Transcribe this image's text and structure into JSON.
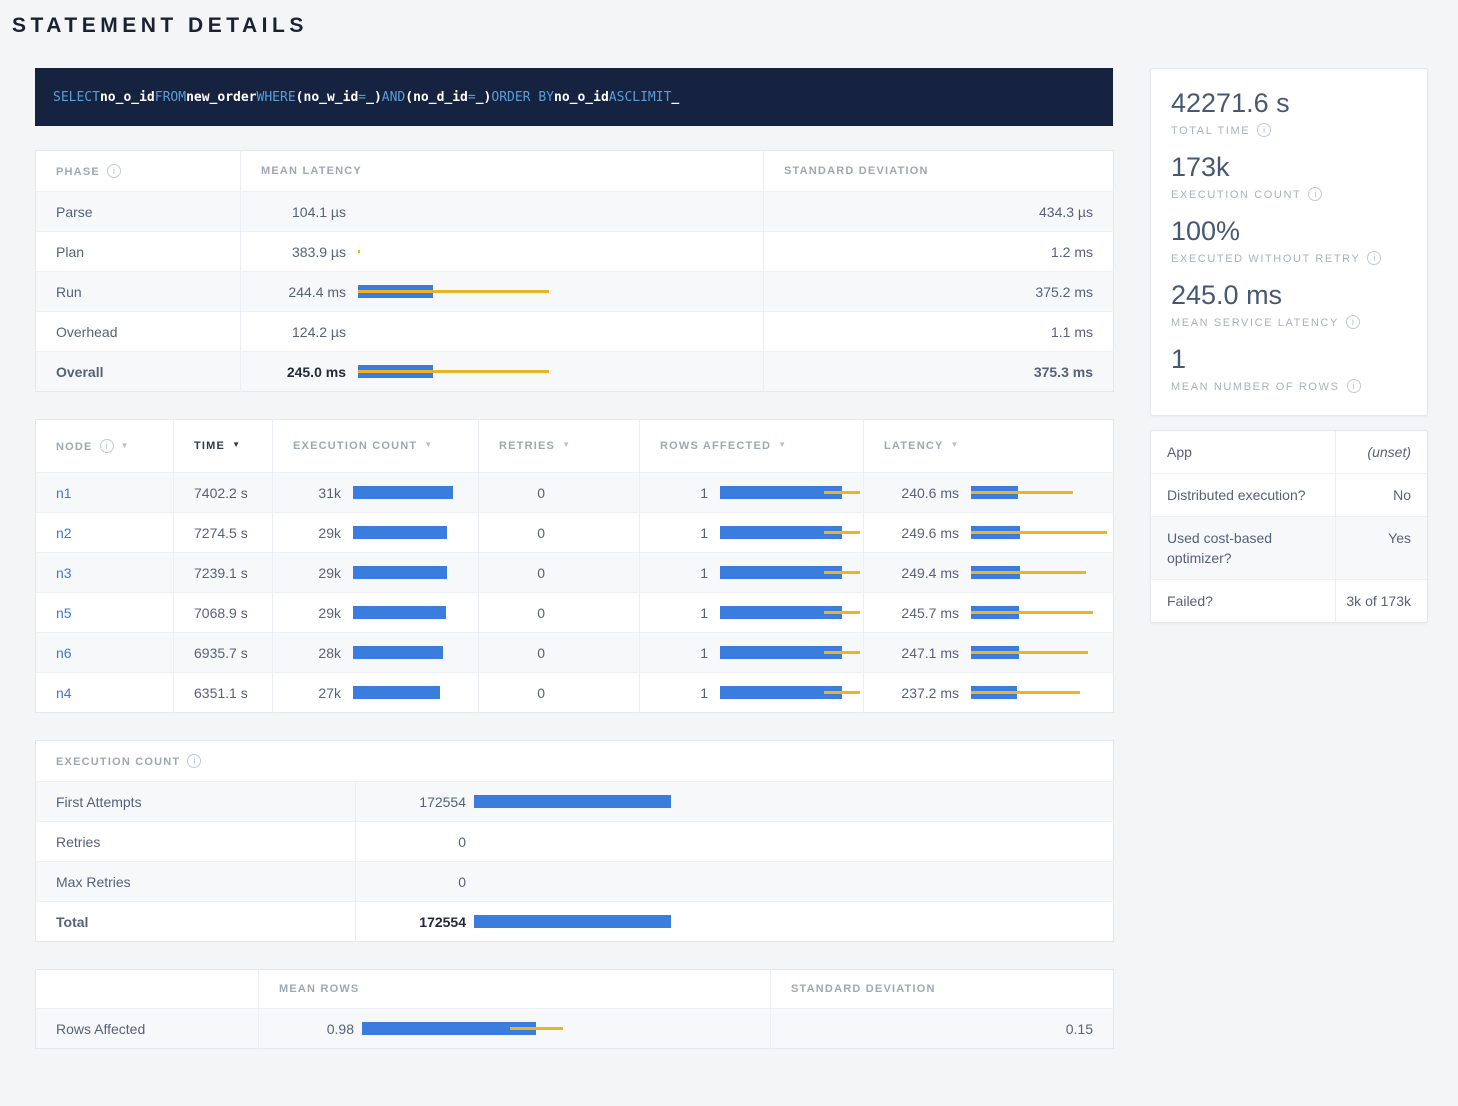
{
  "page": {
    "title": "STATEMENT DETAILS"
  },
  "colors": {
    "bar_blue": "#3B7DDD",
    "bar_yellow": "#ECB326",
    "link_blue": "#3B78DC",
    "sql_keyword_blue": "#5C9DD6",
    "sql_background": "#152341"
  },
  "sql": {
    "tokens": [
      {
        "t": "SELECT",
        "k": true
      },
      {
        "t": "no_o_id",
        "k": false
      },
      {
        "t": "FROM",
        "k": true
      },
      {
        "t": "new_order",
        "k": false
      },
      {
        "t": "WHERE",
        "k": true
      },
      {
        "t": "(no_w_id",
        "k": false
      },
      {
        "t": "=",
        "k": true
      },
      {
        "t": "_)",
        "k": false
      },
      {
        "t": "AND",
        "k": true
      },
      {
        "t": "(no_d_id",
        "k": false
      },
      {
        "t": "=",
        "k": true
      },
      {
        "t": "_)",
        "k": false
      },
      {
        "t": "ORDER BY",
        "k": true
      },
      {
        "t": "no_o_id",
        "k": false
      },
      {
        "t": "ASC",
        "k": true
      },
      {
        "t": "LIMIT",
        "k": true
      },
      {
        "t": "_",
        "k": false
      }
    ]
  },
  "phase_table": {
    "col_phase": "PHASE",
    "col_mean": "MEAN LATENCY",
    "col_std": "STANDARD DEVIATION",
    "rows": [
      {
        "phase": "Parse",
        "mean": "104.1 µs",
        "mean_ms": 0.1041,
        "std": "434.3 µs",
        "std_ms": 0.4343,
        "bold": false
      },
      {
        "phase": "Plan",
        "mean": "383.9 µs",
        "mean_ms": 0.3839,
        "std": "1.2 ms",
        "std_ms": 1.2,
        "bold": false
      },
      {
        "phase": "Run",
        "mean": "244.4 ms",
        "mean_ms": 244.4,
        "std": "375.2 ms",
        "std_ms": 375.2,
        "bold": false
      },
      {
        "phase": "Overhead",
        "mean": "124.2 µs",
        "mean_ms": 0.1242,
        "std": "1.1 ms",
        "std_ms": 1.1,
        "bold": false
      },
      {
        "phase": "Overall",
        "mean": "245.0 ms",
        "mean_ms": 245.0,
        "std": "375.3 ms",
        "std_ms": 375.3,
        "bold": true
      }
    ]
  },
  "node_table": {
    "columns": {
      "node": "NODE",
      "time": "TIME",
      "exec": "EXECUTION COUNT",
      "retries": "RETRIES",
      "rows": "ROWS AFFECTED",
      "latency": "LATENCY"
    },
    "sorted_column": "TIME",
    "rows": [
      {
        "node": "n1",
        "time": "7402.2 s",
        "exec_label": "31k",
        "exec": 31000,
        "retries": "0",
        "rows_label": "1",
        "rows_mean": 1,
        "rows_std": 0.15,
        "lat_label": "240.6 ms",
        "lat_ms": 240.6,
        "lat_std_ms": 280
      },
      {
        "node": "n2",
        "time": "7274.5 s",
        "exec_label": "29k",
        "exec": 29200,
        "retries": "0",
        "rows_label": "1",
        "rows_mean": 1,
        "rows_std": 0.15,
        "lat_label": "249.6 ms",
        "lat_ms": 249.6,
        "lat_std_ms": 450
      },
      {
        "node": "n3",
        "time": "7239.1 s",
        "exec_label": "29k",
        "exec": 29000,
        "retries": "0",
        "rows_label": "1",
        "rows_mean": 1,
        "rows_std": 0.15,
        "lat_label": "249.4 ms",
        "lat_ms": 249.4,
        "lat_std_ms": 340
      },
      {
        "node": "n5",
        "time": "7068.9 s",
        "exec_label": "29k",
        "exec": 28900,
        "retries": "0",
        "rows_label": "1",
        "rows_mean": 1,
        "rows_std": 0.15,
        "lat_label": "245.7 ms",
        "lat_ms": 245.7,
        "lat_std_ms": 380
      },
      {
        "node": "n6",
        "time": "6935.7 s",
        "exec_label": "28k",
        "exec": 28000,
        "retries": "0",
        "rows_label": "1",
        "rows_mean": 1,
        "rows_std": 0.15,
        "lat_label": "247.1 ms",
        "lat_ms": 247.1,
        "lat_std_ms": 355
      },
      {
        "node": "n4",
        "time": "6351.1 s",
        "exec_label": "27k",
        "exec": 27000,
        "retries": "0",
        "rows_label": "1",
        "rows_mean": 1,
        "rows_std": 0.15,
        "lat_label": "237.2 ms",
        "lat_ms": 237.2,
        "lat_std_ms": 320
      }
    ]
  },
  "exec_table": {
    "title": "EXECUTION COUNT",
    "rows": [
      {
        "label": "First Attempts",
        "value": "172554",
        "num": 172554,
        "bold": false
      },
      {
        "label": "Retries",
        "value": "0",
        "num": 0,
        "bold": false
      },
      {
        "label": "Max Retries",
        "value": "0",
        "num": 0,
        "bold": false
      },
      {
        "label": "Total",
        "value": "172554",
        "num": 172554,
        "bold": true
      }
    ]
  },
  "rows_table": {
    "col_mean": "MEAN ROWS",
    "col_std": "STANDARD DEVIATION",
    "row_label": "Rows Affected",
    "mean_label": "0.98",
    "mean": 0.98,
    "std_label": "0.15",
    "std": 0.15
  },
  "summary": {
    "stats": [
      {
        "value": "42271.6 s",
        "label": "TOTAL TIME"
      },
      {
        "value": "173k",
        "label": "EXECUTION COUNT"
      },
      {
        "value": "100%",
        "label": "EXECUTED WITHOUT RETRY"
      },
      {
        "value": "245.0 ms",
        "label": "MEAN SERVICE LATENCY"
      },
      {
        "value": "1",
        "label": "MEAN NUMBER OF ROWS"
      }
    ]
  },
  "app_card": {
    "rows": [
      {
        "label": "App",
        "value": "(unset)",
        "unset": true,
        "striped": false
      },
      {
        "label": "Distributed execution?",
        "value": "No",
        "unset": false,
        "striped": false
      },
      {
        "label": "Used cost-based optimizer?",
        "value": "Yes",
        "unset": false,
        "striped": true
      },
      {
        "label": "Failed?",
        "value": "3k of 173k",
        "unset": false,
        "striped": false
      }
    ]
  }
}
